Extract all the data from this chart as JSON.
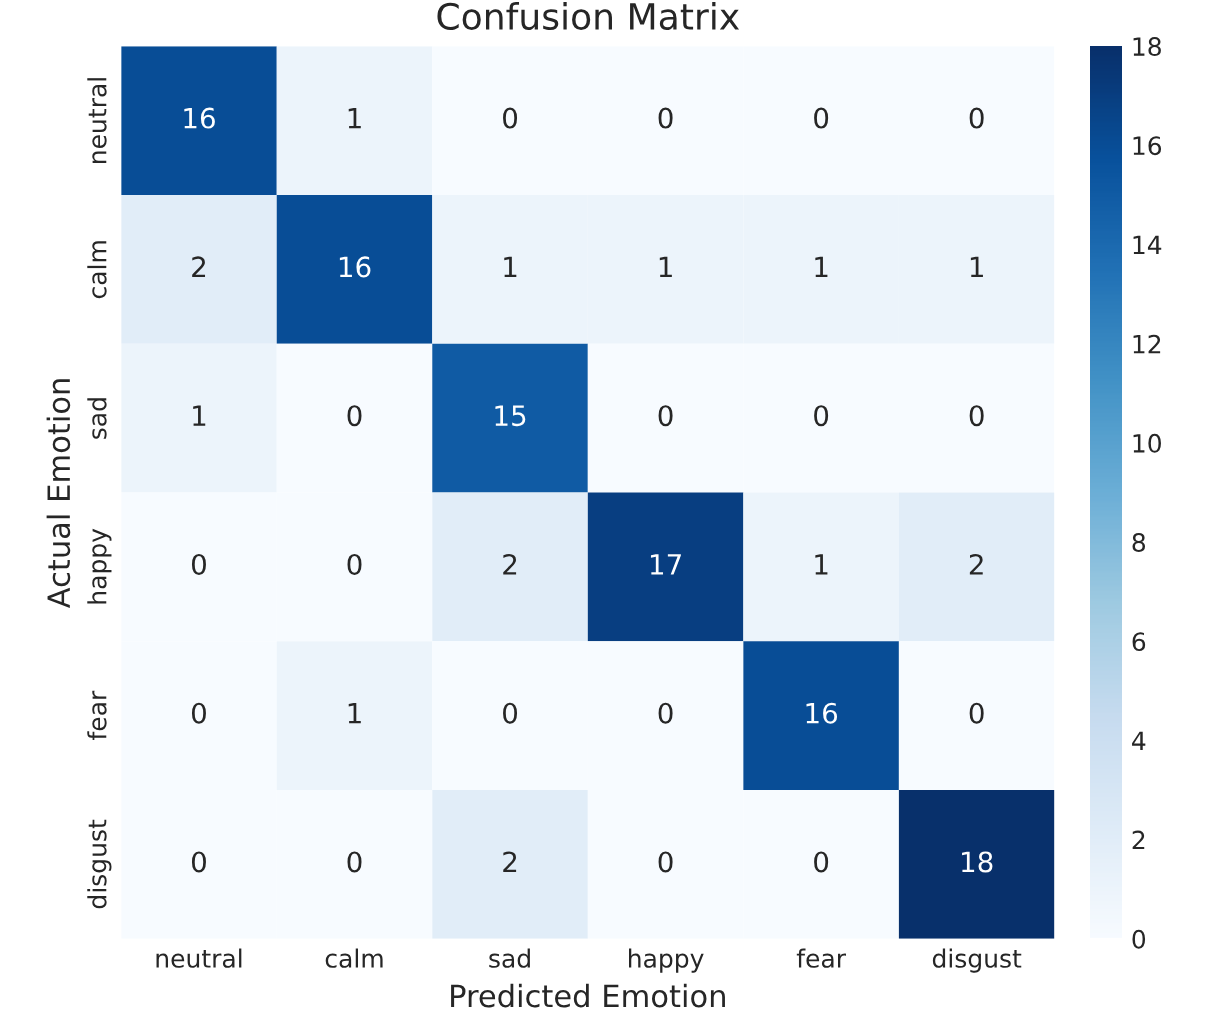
{
  "chart_data": {
    "type": "heatmap",
    "title": "Confusion Matrix",
    "xlabel": "Predicted Emotion",
    "ylabel": "Actual Emotion",
    "categories": [
      "neutral",
      "calm",
      "sad",
      "happy",
      "fear",
      "disgust"
    ],
    "y_categories": [
      "neutral",
      "calm",
      "sad",
      "happy",
      "fear",
      "disgust"
    ],
    "cells": [
      [
        16,
        1,
        0,
        0,
        0,
        0
      ],
      [
        2,
        16,
        1,
        1,
        1,
        1
      ],
      [
        1,
        0,
        15,
        0,
        0,
        0
      ],
      [
        0,
        0,
        2,
        17,
        1,
        2
      ],
      [
        0,
        1,
        0,
        0,
        16,
        0
      ],
      [
        0,
        0,
        2,
        0,
        0,
        18
      ]
    ],
    "data_labels": true,
    "clim": [
      0,
      18
    ],
    "cticks": [
      0,
      2,
      4,
      6,
      8,
      10,
      12,
      14,
      16,
      18
    ]
  }
}
